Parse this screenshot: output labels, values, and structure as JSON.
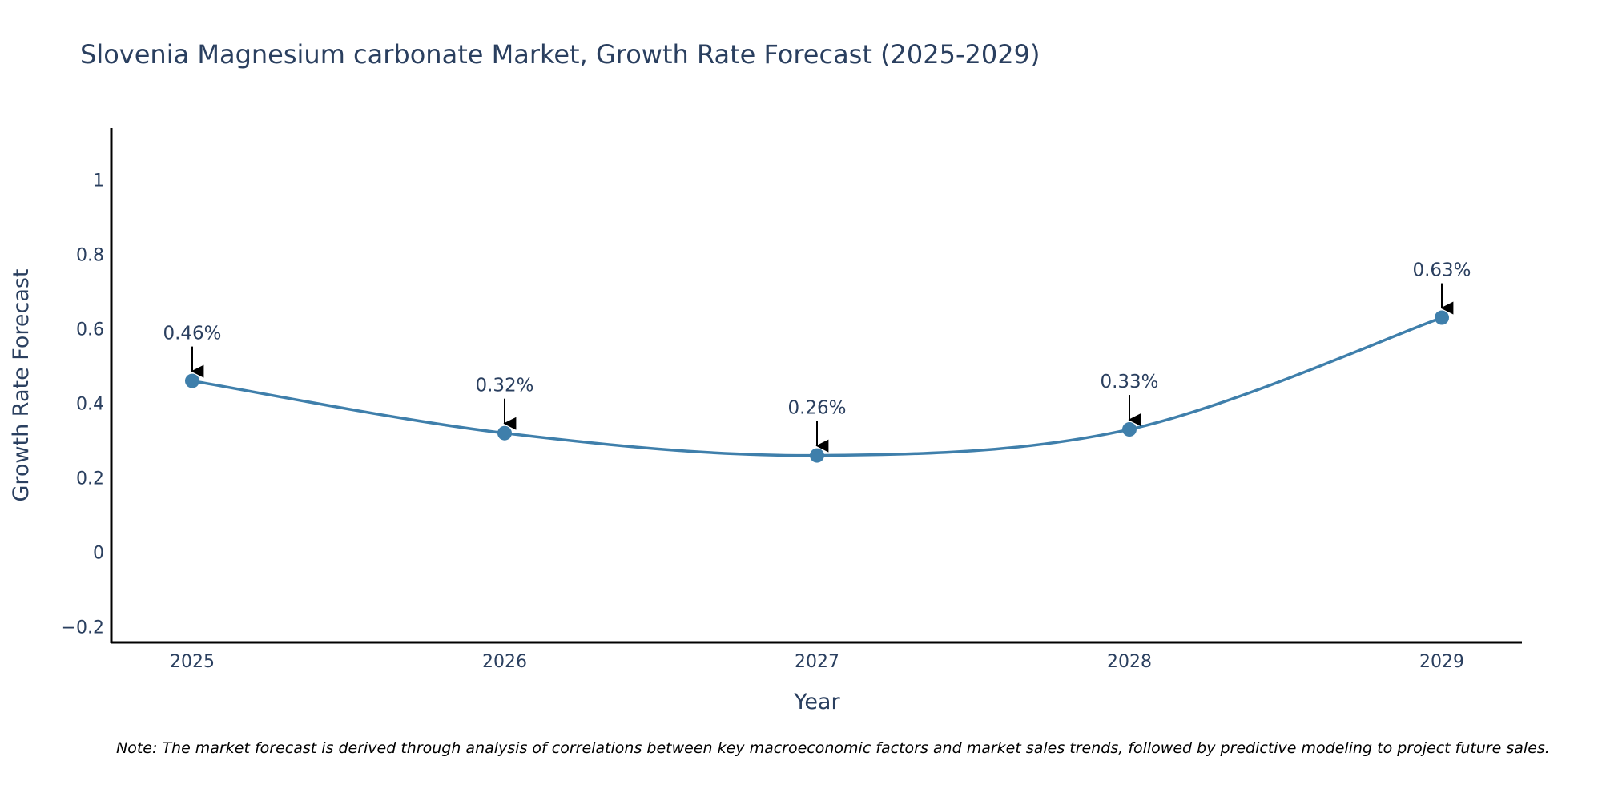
{
  "chart_data": {
    "type": "line",
    "title": "Slovenia Magnesium carbonate Market, Growth Rate Forecast (2025-2029)",
    "xlabel": "Year",
    "ylabel": "Growth Rate Forecast",
    "categories": [
      "2025",
      "2026",
      "2027",
      "2028",
      "2029"
    ],
    "values": [
      0.46,
      0.32,
      0.26,
      0.33,
      0.63
    ],
    "data_labels": [
      "0.46%",
      "0.32%",
      "0.26%",
      "0.33%",
      "0.63%"
    ],
    "y_ticks": [
      -0.2,
      0,
      0.2,
      0.4,
      0.6,
      0.8,
      1
    ],
    "y_tick_labels": [
      "−0.2",
      "0",
      "0.2",
      "0.4",
      "0.6",
      "0.8",
      "1"
    ],
    "ylim": [
      -0.25,
      1.12
    ],
    "grid": false,
    "line_shape": "spline",
    "colors": {
      "line": "#3f7fab",
      "marker": "#3f7fab",
      "arrow": "#000000",
      "axis": "#000000"
    },
    "note": "Note: The market forecast is derived through analysis of correlations between key macroeconomic factors and market sales trends, followed by predictive modeling to project future sales."
  }
}
